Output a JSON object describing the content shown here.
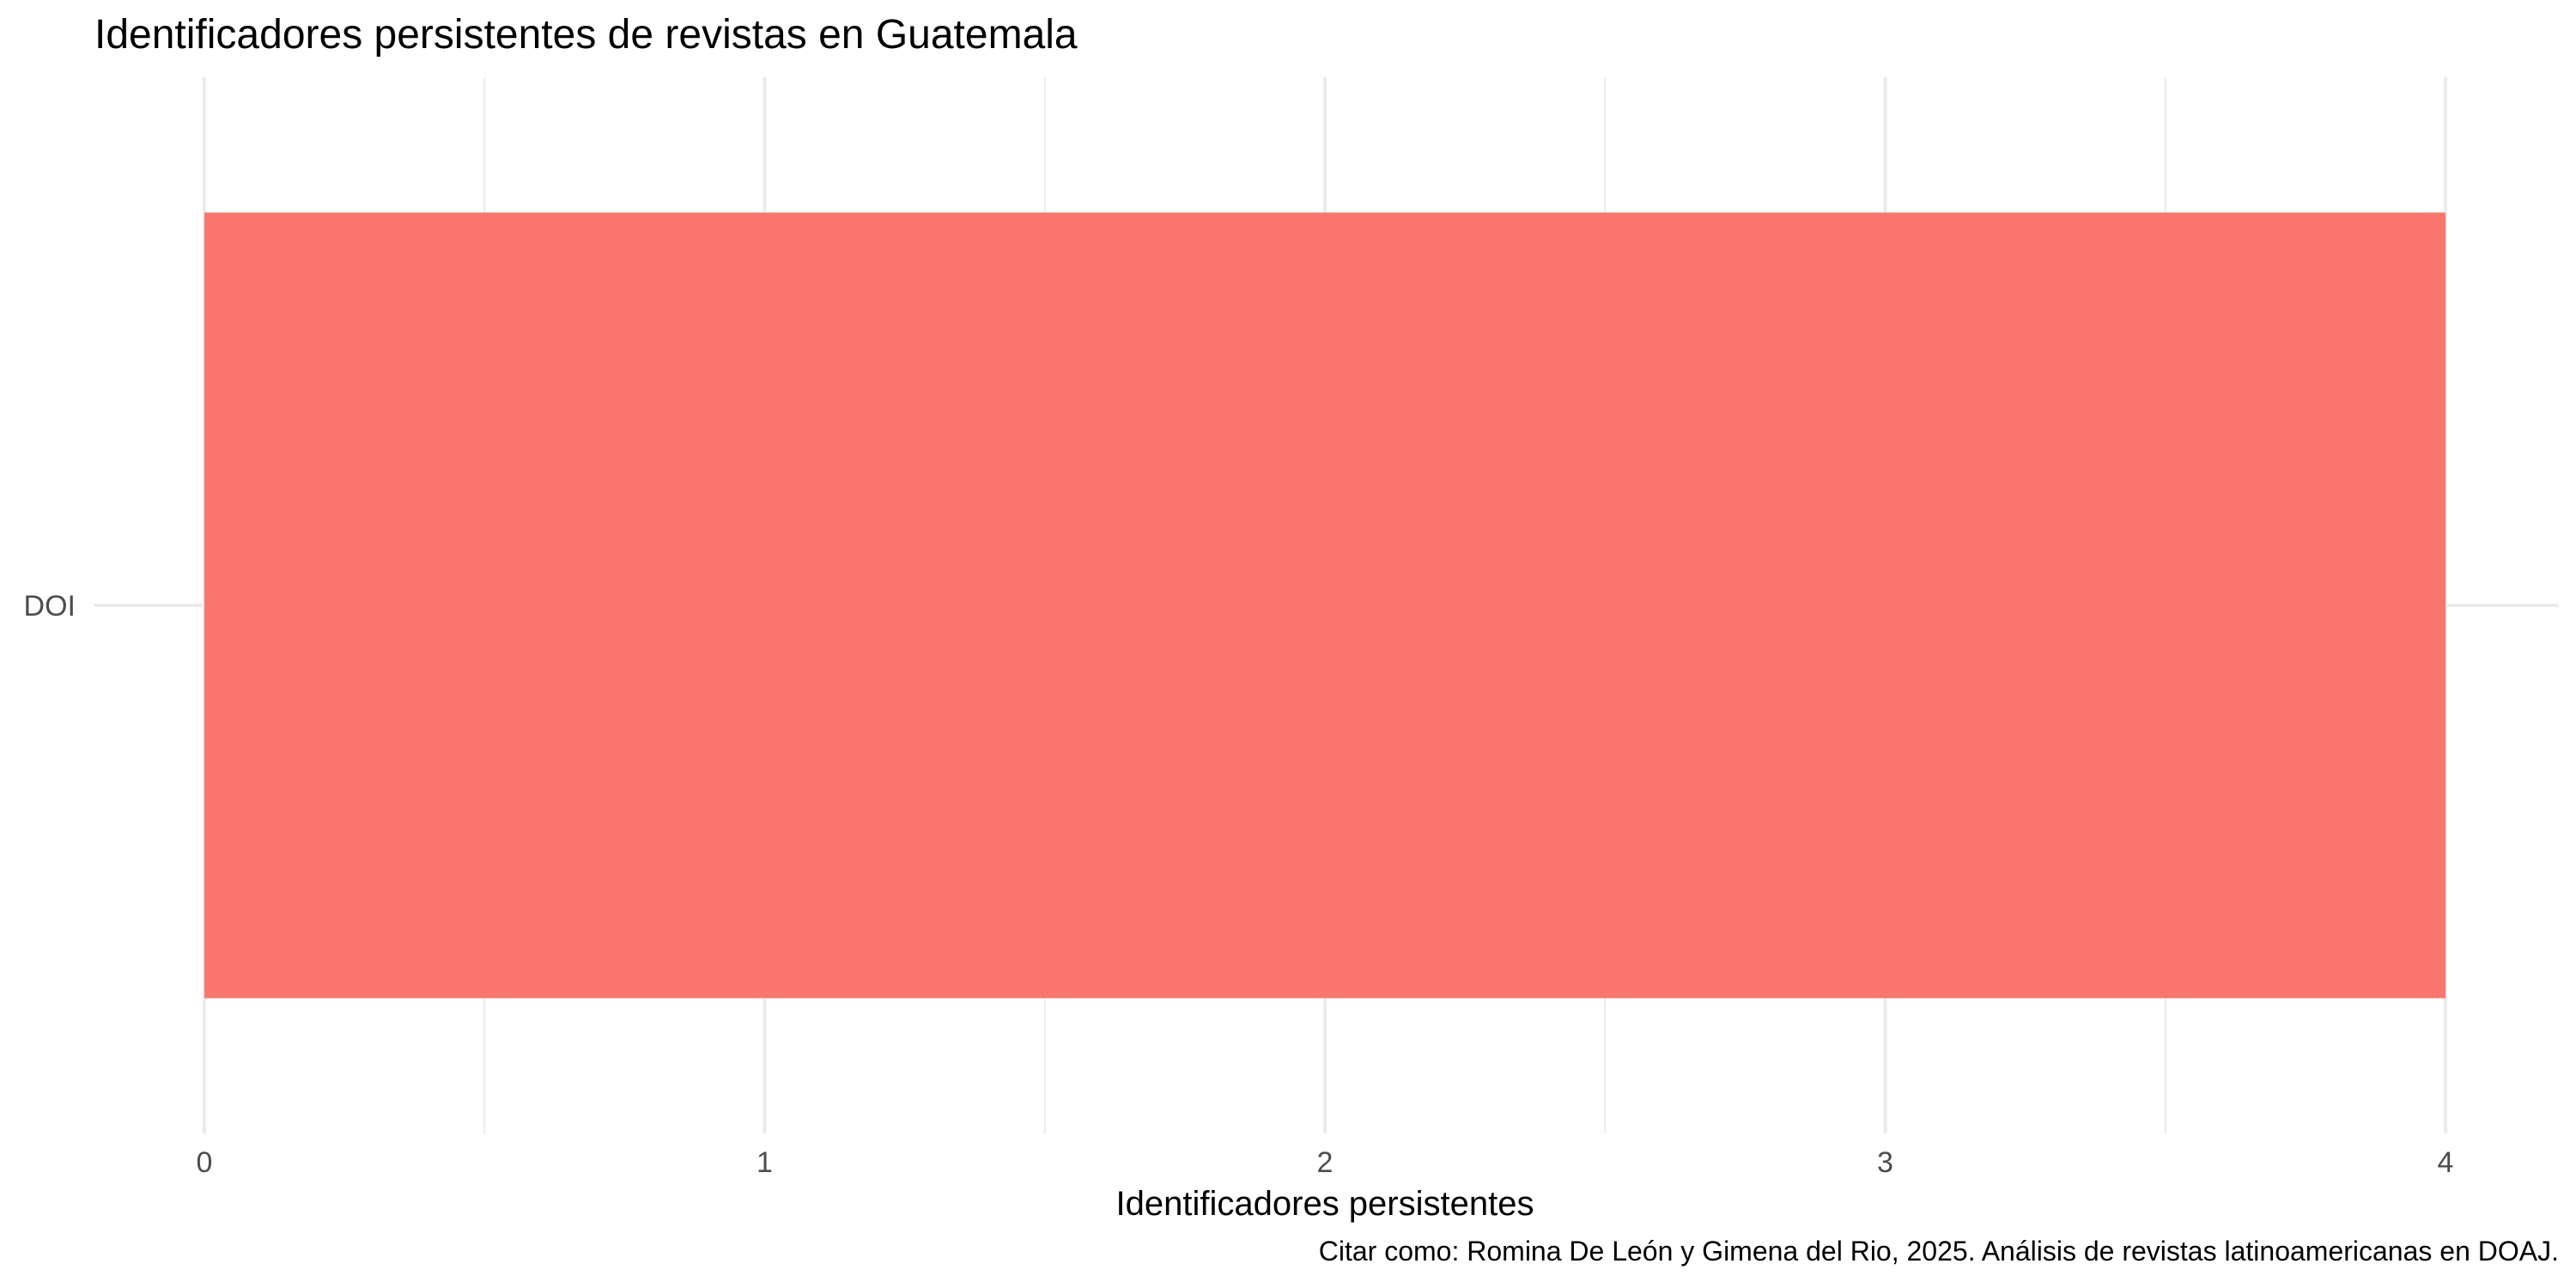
{
  "chart_data": {
    "type": "bar",
    "orientation": "horizontal",
    "title": "Identificadores persistentes de revistas en Guatemala",
    "xlabel": "Identificadores persistentes",
    "ylabel": "",
    "caption": "Citar como: Romina De León y Gimena del Rio, 2025. Análisis de revistas latinoamericanas en DOAJ.",
    "categories": [
      "DOI"
    ],
    "values": [
      4
    ],
    "xlim": [
      0,
      4
    ],
    "x_ticks": [
      0,
      1,
      2,
      3,
      4
    ],
    "grid": true,
    "legend": "none",
    "colors": {
      "bar": "#F8766D",
      "grid": "#EBEBEB",
      "text": "#000000",
      "tick_text": "#4D4D4D",
      "background": "#FFFFFF"
    }
  }
}
